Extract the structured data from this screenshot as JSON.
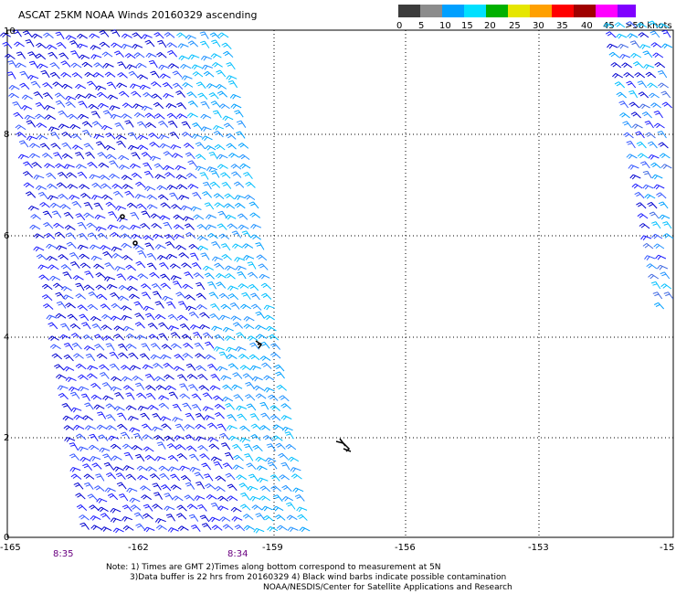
{
  "title": "ASCAT 25KM NOAA Winds 20160329 ascending",
  "legend": {
    "labels": [
      "0",
      "5",
      "10",
      "15",
      "20",
      "25",
      "30",
      "35",
      "40",
      "45",
      ">50 knots"
    ],
    "colors": [
      "#3c3c3c",
      "#8c8c8c",
      "#00a0ff",
      "#00e0ff",
      "#00b000",
      "#e6e600",
      "#ffa000",
      "#ff0000",
      "#a00000",
      "#ff00ff",
      "#8000ff",
      "#4b0082"
    ]
  },
  "axes": {
    "y_labels": [
      "0",
      "2",
      "4",
      "6",
      "8",
      "10"
    ],
    "x_labels": [
      "-165",
      "-162",
      "-159",
      "-156",
      "-153",
      "-15"
    ],
    "times": [
      "8:35",
      "8:34"
    ]
  },
  "notes": {
    "line1": "Note: 1) Times are GMT 2)Times along bottom correspond to measurement at 5N",
    "line2": "3)Data buffer is 22 hrs from 20160329 4) Black wind barbs indicate possible contamination",
    "line3": "NOAA/NESDIS/Center for Satellite Applications and Research"
  },
  "swath_colors": [
    "#1a1aff",
    "#0000d0",
    "#3355ff",
    "#1e90ff",
    "#00bfff",
    "#00a0ff",
    "#4169e1"
  ]
}
